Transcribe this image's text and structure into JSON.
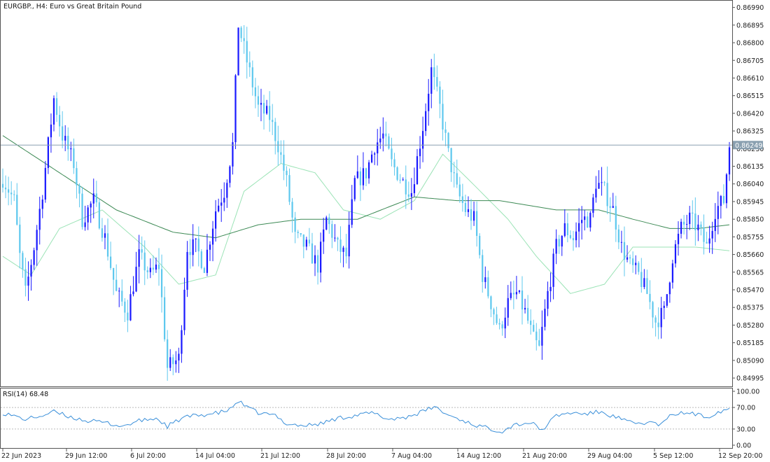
{
  "header": {
    "title": "EURGBP., H4:  Euro vs Great Britain Pound"
  },
  "colors": {
    "background": "#ffffff",
    "frame": "#555555",
    "bull_candle": "#1a1aff",
    "bear_candle": "#5ec8ee",
    "ma_fast": "#9be3b6",
    "ma_slow": "#3d8a55",
    "price_line": "#8aa0b0",
    "price_label_bg": "#8aa0b0",
    "rsi_line": "#3a8fd9",
    "rsi_level": "#bbbbbb"
  },
  "price_axis": {
    "labels": [
      "0.86990",
      "0.86895",
      "0.86800",
      "0.86705",
      "0.86610",
      "0.86515",
      "0.86420",
      "0.86325",
      "0.86230",
      "0.86135",
      "0.86040",
      "0.85945",
      "0.85850",
      "0.85755",
      "0.85660",
      "0.85565",
      "0.85470",
      "0.85375",
      "0.85280",
      "0.85185",
      "0.85090",
      "0.84995"
    ],
    "current_price": "0.86249"
  },
  "rsi_panel": {
    "label": "RSI(14) 68.48",
    "axis_labels": [
      "100.00",
      "70.00",
      "30.00",
      "0.00"
    ]
  },
  "time_axis": {
    "labels": [
      "22 Jun 2023",
      "29 Jun 12:00",
      "6 Jul 20:00",
      "14 Jul 04:00",
      "21 Jul 12:00",
      "28 Jul 20:00",
      "7 Aug 04:00",
      "14 Aug 12:00",
      "21 Aug 20:00",
      "29 Aug 04:00",
      "5 Sep 12:00",
      "12 Sep 20:00"
    ]
  },
  "chart_data": [
    {
      "type": "candlestick",
      "symbol": "EURGBP.",
      "timeframe": "H4",
      "title": "EURGBP., H4:  Euro vs Great Britain Pound",
      "ylim": [
        0.8495,
        0.8703
      ],
      "current_price": 0.86249,
      "anchors": [
        {
          "t": 0,
          "p": 0.8607
        },
        {
          "t": 4,
          "p": 0.8595
        },
        {
          "t": 6,
          "p": 0.8565
        },
        {
          "t": 8,
          "p": 0.8545
        },
        {
          "t": 11,
          "p": 0.857
        },
        {
          "t": 14,
          "p": 0.86
        },
        {
          "t": 18,
          "p": 0.865
        },
        {
          "t": 21,
          "p": 0.863
        },
        {
          "t": 25,
          "p": 0.8615
        },
        {
          "t": 28,
          "p": 0.8585
        },
        {
          "t": 32,
          "p": 0.8595
        },
        {
          "t": 36,
          "p": 0.8575
        },
        {
          "t": 40,
          "p": 0.8545
        },
        {
          "t": 44,
          "p": 0.8535
        },
        {
          "t": 48,
          "p": 0.8565
        },
        {
          "t": 52,
          "p": 0.8555
        },
        {
          "t": 55,
          "p": 0.856
        },
        {
          "t": 58,
          "p": 0.8505
        },
        {
          "t": 62,
          "p": 0.851
        },
        {
          "t": 65,
          "p": 0.857
        },
        {
          "t": 68,
          "p": 0.857
        },
        {
          "t": 71,
          "p": 0.856
        },
        {
          "t": 75,
          "p": 0.859
        },
        {
          "t": 78,
          "p": 0.86
        },
        {
          "t": 81,
          "p": 0.8625
        },
        {
          "t": 83,
          "p": 0.869
        },
        {
          "t": 86,
          "p": 0.867
        },
        {
          "t": 90,
          "p": 0.8645
        },
        {
          "t": 94,
          "p": 0.864
        },
        {
          "t": 97,
          "p": 0.8625
        },
        {
          "t": 100,
          "p": 0.8605
        },
        {
          "t": 103,
          "p": 0.8575
        },
        {
          "t": 107,
          "p": 0.857
        },
        {
          "t": 111,
          "p": 0.856
        },
        {
          "t": 114,
          "p": 0.8585
        },
        {
          "t": 118,
          "p": 0.857
        },
        {
          "t": 121,
          "p": 0.8565
        },
        {
          "t": 124,
          "p": 0.8605
        },
        {
          "t": 128,
          "p": 0.861
        },
        {
          "t": 131,
          "p": 0.8625
        },
        {
          "t": 134,
          "p": 0.863
        },
        {
          "t": 137,
          "p": 0.8615
        },
        {
          "t": 141,
          "p": 0.8605
        },
        {
          "t": 144,
          "p": 0.86
        },
        {
          "t": 148,
          "p": 0.8635
        },
        {
          "t": 151,
          "p": 0.8665
        },
        {
          "t": 154,
          "p": 0.8645
        },
        {
          "t": 157,
          "p": 0.862
        },
        {
          "t": 160,
          "p": 0.86
        },
        {
          "t": 163,
          "p": 0.859
        },
        {
          "t": 166,
          "p": 0.8585
        },
        {
          "t": 169,
          "p": 0.8555
        },
        {
          "t": 172,
          "p": 0.854
        },
        {
          "t": 175,
          "p": 0.8525
        },
        {
          "t": 178,
          "p": 0.854
        },
        {
          "t": 181,
          "p": 0.8545
        },
        {
          "t": 184,
          "p": 0.8535
        },
        {
          "t": 187,
          "p": 0.852
        },
        {
          "t": 189,
          "p": 0.8515
        },
        {
          "t": 192,
          "p": 0.8545
        },
        {
          "t": 195,
          "p": 0.857
        },
        {
          "t": 198,
          "p": 0.858
        },
        {
          "t": 201,
          "p": 0.8575
        },
        {
          "t": 204,
          "p": 0.8585
        },
        {
          "t": 207,
          "p": 0.8585
        },
        {
          "t": 209,
          "p": 0.8605
        },
        {
          "t": 212,
          "p": 0.86
        },
        {
          "t": 215,
          "p": 0.859
        },
        {
          "t": 218,
          "p": 0.857
        },
        {
          "t": 221,
          "p": 0.856
        },
        {
          "t": 224,
          "p": 0.8555
        },
        {
          "t": 227,
          "p": 0.8545
        },
        {
          "t": 230,
          "p": 0.853
        },
        {
          "t": 233,
          "p": 0.8535
        },
        {
          "t": 236,
          "p": 0.8565
        },
        {
          "t": 239,
          "p": 0.858
        },
        {
          "t": 242,
          "p": 0.8585
        },
        {
          "t": 245,
          "p": 0.858
        },
        {
          "t": 248,
          "p": 0.857
        },
        {
          "t": 251,
          "p": 0.859
        },
        {
          "t": 254,
          "p": 0.8595
        },
        {
          "t": 256,
          "p": 0.8625
        }
      ],
      "moving_averages": [
        {
          "name": "MA fast",
          "anchors": [
            {
              "t": 0,
              "p": 0.8565
            },
            {
              "t": 10,
              "p": 0.8555
            },
            {
              "t": 20,
              "p": 0.858
            },
            {
              "t": 35,
              "p": 0.859
            },
            {
              "t": 50,
              "p": 0.857
            },
            {
              "t": 62,
              "p": 0.855
            },
            {
              "t": 75,
              "p": 0.8555
            },
            {
              "t": 85,
              "p": 0.86
            },
            {
              "t": 98,
              "p": 0.8615
            },
            {
              "t": 110,
              "p": 0.861
            },
            {
              "t": 120,
              "p": 0.859
            },
            {
              "t": 133,
              "p": 0.8585
            },
            {
              "t": 145,
              "p": 0.8595
            },
            {
              "t": 155,
              "p": 0.862
            },
            {
              "t": 165,
              "p": 0.8605
            },
            {
              "t": 178,
              "p": 0.8585
            },
            {
              "t": 188,
              "p": 0.8565
            },
            {
              "t": 200,
              "p": 0.8545
            },
            {
              "t": 212,
              "p": 0.855
            },
            {
              "t": 222,
              "p": 0.857
            },
            {
              "t": 232,
              "p": 0.857
            },
            {
              "t": 244,
              "p": 0.857
            },
            {
              "t": 256,
              "p": 0.8568
            }
          ]
        },
        {
          "name": "MA slow",
          "anchors": [
            {
              "t": 0,
              "p": 0.863
            },
            {
              "t": 20,
              "p": 0.861
            },
            {
              "t": 40,
              "p": 0.859
            },
            {
              "t": 60,
              "p": 0.8578
            },
            {
              "t": 75,
              "p": 0.8575
            },
            {
              "t": 90,
              "p": 0.8582
            },
            {
              "t": 105,
              "p": 0.8585
            },
            {
              "t": 125,
              "p": 0.8585
            },
            {
              "t": 145,
              "p": 0.8597
            },
            {
              "t": 160,
              "p": 0.8595
            },
            {
              "t": 175,
              "p": 0.8595
            },
            {
              "t": 195,
              "p": 0.859
            },
            {
              "t": 210,
              "p": 0.859
            },
            {
              "t": 222,
              "p": 0.8585
            },
            {
              "t": 235,
              "p": 0.858
            },
            {
              "t": 245,
              "p": 0.858
            },
            {
              "t": 256,
              "p": 0.8582
            }
          ]
        }
      ]
    },
    {
      "type": "line",
      "indicator": "RSI(14)",
      "ylim": [
        0,
        100
      ],
      "levels": [
        70,
        30
      ],
      "current": 68.48,
      "anchors": [
        {
          "t": 0,
          "v": 60
        },
        {
          "t": 8,
          "v": 48
        },
        {
          "t": 14,
          "v": 55
        },
        {
          "t": 18,
          "v": 62
        },
        {
          "t": 24,
          "v": 52
        },
        {
          "t": 30,
          "v": 45
        },
        {
          "t": 36,
          "v": 42
        },
        {
          "t": 42,
          "v": 35
        },
        {
          "t": 48,
          "v": 45
        },
        {
          "t": 54,
          "v": 50
        },
        {
          "t": 58,
          "v": 35
        },
        {
          "t": 64,
          "v": 52
        },
        {
          "t": 70,
          "v": 56
        },
        {
          "t": 76,
          "v": 60
        },
        {
          "t": 80,
          "v": 66
        },
        {
          "t": 83,
          "v": 82
        },
        {
          "t": 86,
          "v": 70
        },
        {
          "t": 90,
          "v": 60
        },
        {
          "t": 96,
          "v": 55
        },
        {
          "t": 100,
          "v": 40
        },
        {
          "t": 106,
          "v": 36
        },
        {
          "t": 112,
          "v": 40
        },
        {
          "t": 118,
          "v": 50
        },
        {
          "t": 124,
          "v": 55
        },
        {
          "t": 130,
          "v": 60
        },
        {
          "t": 136,
          "v": 48
        },
        {
          "t": 142,
          "v": 52
        },
        {
          "t": 148,
          "v": 62
        },
        {
          "t": 152,
          "v": 72
        },
        {
          "t": 156,
          "v": 58
        },
        {
          "t": 160,
          "v": 50
        },
        {
          "t": 166,
          "v": 38
        },
        {
          "t": 172,
          "v": 30
        },
        {
          "t": 176,
          "v": 26
        },
        {
          "t": 180,
          "v": 38
        },
        {
          "t": 186,
          "v": 42
        },
        {
          "t": 190,
          "v": 28
        },
        {
          "t": 195,
          "v": 55
        },
        {
          "t": 200,
          "v": 60
        },
        {
          "t": 206,
          "v": 58
        },
        {
          "t": 210,
          "v": 62
        },
        {
          "t": 216,
          "v": 52
        },
        {
          "t": 222,
          "v": 40
        },
        {
          "t": 228,
          "v": 42
        },
        {
          "t": 232,
          "v": 38
        },
        {
          "t": 236,
          "v": 58
        },
        {
          "t": 242,
          "v": 60
        },
        {
          "t": 248,
          "v": 52
        },
        {
          "t": 252,
          "v": 62
        },
        {
          "t": 256,
          "v": 68.48
        }
      ]
    }
  ]
}
